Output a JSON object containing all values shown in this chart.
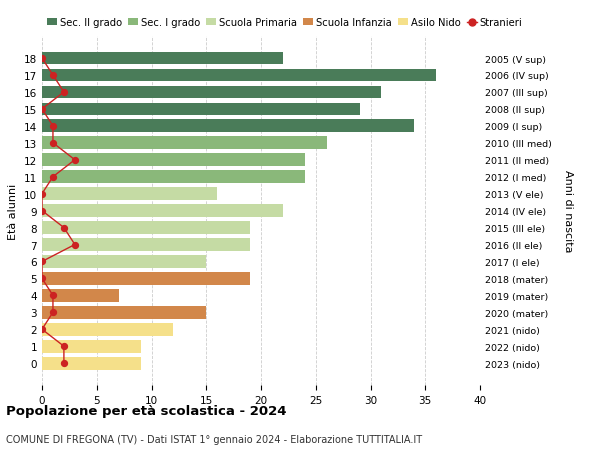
{
  "ages": [
    18,
    17,
    16,
    15,
    14,
    13,
    12,
    11,
    10,
    9,
    8,
    7,
    6,
    5,
    4,
    3,
    2,
    1,
    0
  ],
  "years": [
    "2005 (V sup)",
    "2006 (IV sup)",
    "2007 (III sup)",
    "2008 (II sup)",
    "2009 (I sup)",
    "2010 (III med)",
    "2011 (II med)",
    "2012 (I med)",
    "2013 (V ele)",
    "2014 (IV ele)",
    "2015 (III ele)",
    "2016 (II ele)",
    "2017 (I ele)",
    "2018 (mater)",
    "2019 (mater)",
    "2020 (mater)",
    "2021 (nido)",
    "2022 (nido)",
    "2023 (nido)"
  ],
  "values": [
    22,
    36,
    31,
    29,
    34,
    26,
    24,
    24,
    16,
    22,
    19,
    19,
    15,
    19,
    7,
    15,
    12,
    9,
    9
  ],
  "stranieri": [
    0,
    1,
    2,
    0,
    1,
    1,
    3,
    1,
    0,
    0,
    2,
    3,
    0,
    0,
    1,
    1,
    0,
    2,
    2
  ],
  "bar_colors": [
    "#4a7c59",
    "#4a7c59",
    "#4a7c59",
    "#4a7c59",
    "#4a7c59",
    "#8ab87a",
    "#8ab87a",
    "#8ab87a",
    "#c5dba4",
    "#c5dba4",
    "#c5dba4",
    "#c5dba4",
    "#c5dba4",
    "#d2874a",
    "#d2874a",
    "#d2874a",
    "#f5e08a",
    "#f5e08a",
    "#f5e08a"
  ],
  "legend_labels": [
    "Sec. II grado",
    "Sec. I grado",
    "Scuola Primaria",
    "Scuola Infanzia",
    "Asilo Nido",
    "Stranieri"
  ],
  "legend_colors": [
    "#4a7c59",
    "#8ab87a",
    "#c5dba4",
    "#d2874a",
    "#f5e08a",
    "#cc2222"
  ],
  "stranieri_color": "#cc2222",
  "title": "Popolazione per età scolastica - 2024",
  "subtitle": "COMUNE DI FREGONA (TV) - Dati ISTAT 1° gennaio 2024 - Elaborazione TUTTITALIA.IT",
  "ylabel": "Età alunni",
  "right_ylabel": "Anni di nascita",
  "xlim": [
    0,
    40
  ],
  "xticks": [
    0,
    5,
    10,
    15,
    20,
    25,
    30,
    35,
    40
  ],
  "bg_color": "#ffffff",
  "grid_color": "#cccccc"
}
